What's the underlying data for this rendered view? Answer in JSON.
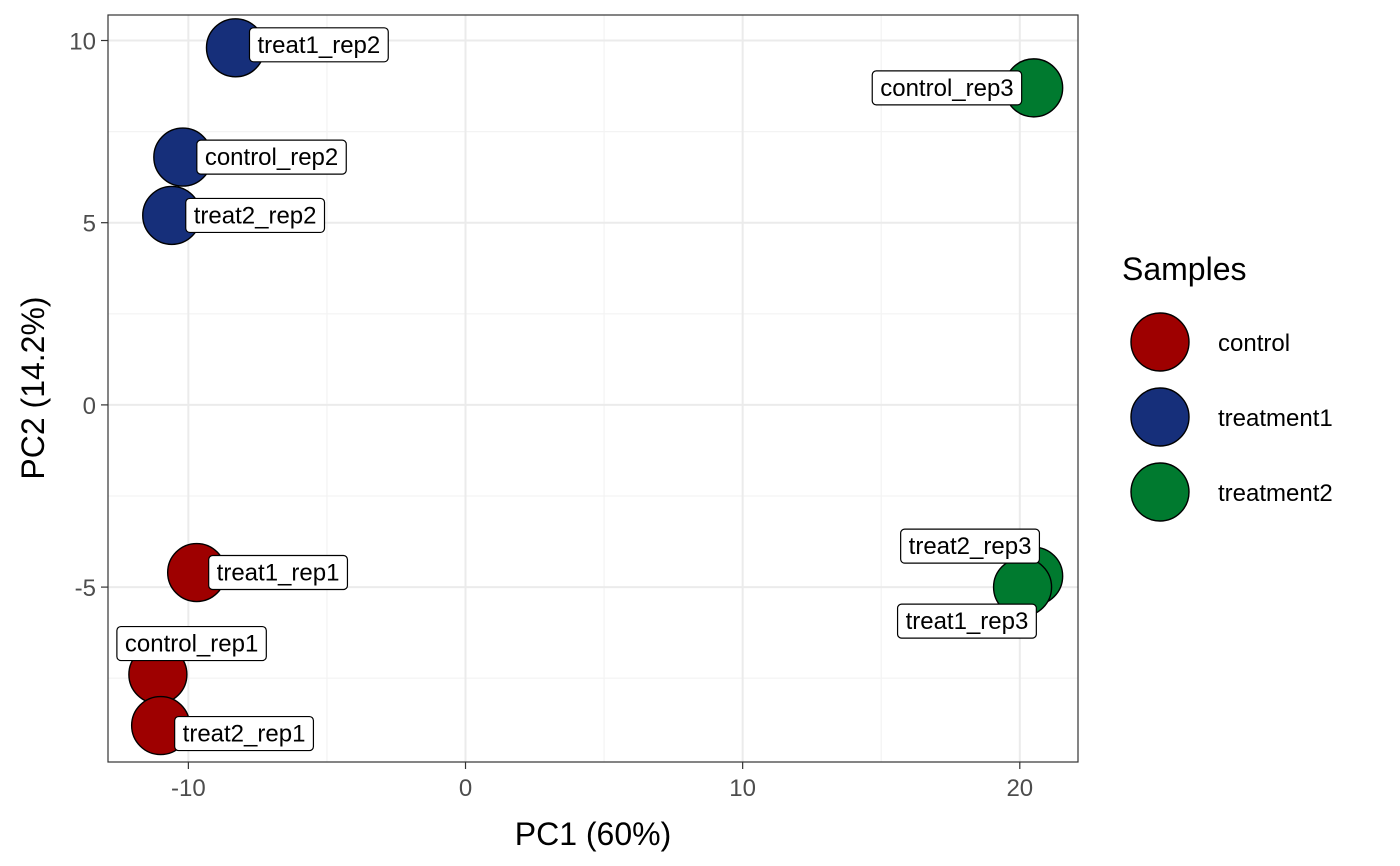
{
  "chart_data": {
    "type": "scatter",
    "title": "",
    "xlabel": "PC1 (60%)",
    "ylabel": "PC2 (14.2%)",
    "xlim": [
      -12.9,
      22.1
    ],
    "ylim": [
      -9.8,
      10.7
    ],
    "xticks": [
      -10,
      0,
      10,
      20
    ],
    "xtick_labels": [
      "-10",
      "0",
      "10",
      "20"
    ],
    "yticks": [
      -5,
      0,
      5,
      10
    ],
    "ytick_labels": [
      "-5",
      "0",
      "5",
      "10"
    ],
    "grid": true,
    "legend": {
      "title": "Samples",
      "position": "right",
      "entries": [
        {
          "name": "control",
          "color": "#9e0000"
        },
        {
          "name": "treatment1",
          "color": "#162f7a"
        },
        {
          "name": "treatment2",
          "color": "#007a2f"
        }
      ]
    },
    "points": [
      {
        "label": "treat1_rep2",
        "x": -8.3,
        "y": 9.8,
        "group": "treatment1"
      },
      {
        "label": "control_rep2",
        "x": -10.2,
        "y": 6.8,
        "group": "treatment1"
      },
      {
        "label": "treat2_rep2",
        "x": -10.6,
        "y": 5.2,
        "group": "treatment1"
      },
      {
        "label": "control_rep3",
        "x": 20.5,
        "y": 8.7,
        "group": "treatment2"
      },
      {
        "label": "treat1_rep1",
        "x": -9.7,
        "y": -4.6,
        "group": "control"
      },
      {
        "label": "control_rep1",
        "x": -11.1,
        "y": -7.4,
        "group": "control"
      },
      {
        "label": "treat2_rep1",
        "x": -11.0,
        "y": -8.8,
        "group": "control"
      },
      {
        "label": "treat2_rep3",
        "x": 20.5,
        "y": -4.7,
        "group": "treatment2"
      },
      {
        "label": "treat1_rep3",
        "x": 20.1,
        "y": -5.0,
        "group": "treatment2"
      }
    ]
  }
}
